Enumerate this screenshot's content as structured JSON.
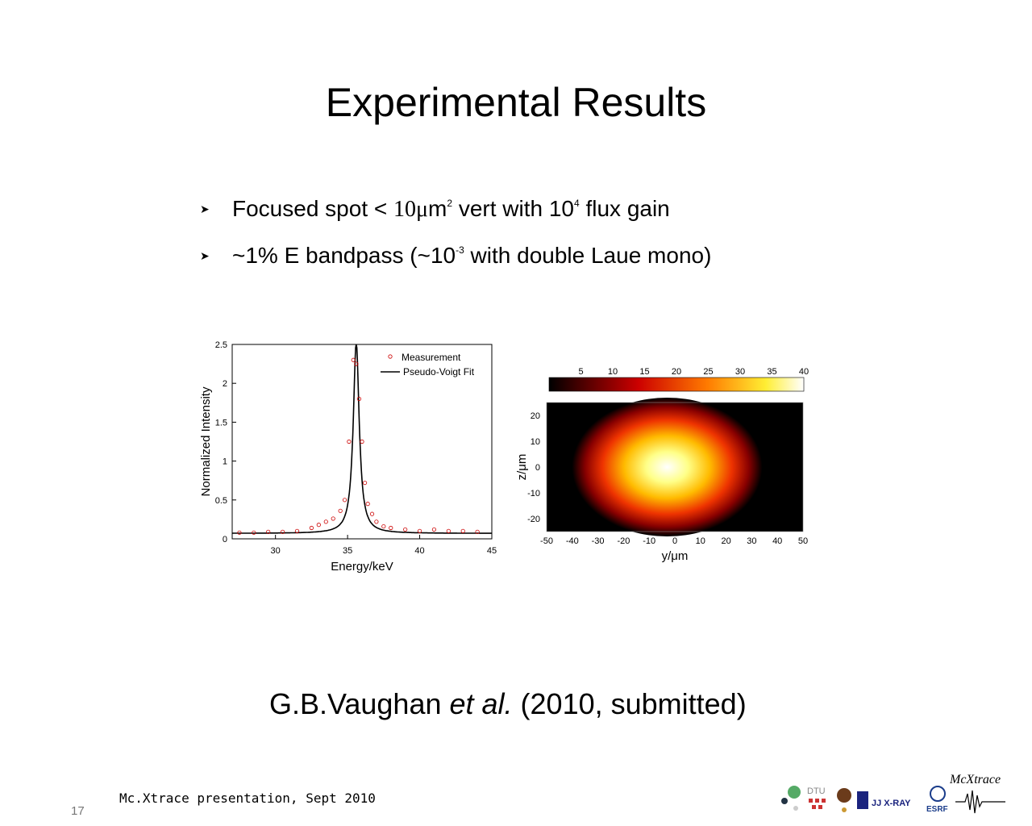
{
  "slide": {
    "title": "Experimental Results",
    "bullets": [
      {
        "pre": "Focused spot < ",
        "mu": "10μ",
        "post": "m",
        "sup1": "2",
        "mid": " vert with 10",
        "sup2": "4",
        "end": " flux gain"
      },
      {
        "pre": "~1% E bandpass (~10",
        "sup": "-3",
        "post": " with double Laue mono)"
      }
    ],
    "citation": {
      "author": "G.B.Vaughan ",
      "etal": "et al.",
      "rest": " (2010, submitted)"
    },
    "footer": "Mc.Xtrace presentation, Sept 2010",
    "page_number": "17",
    "brand": "McXtrace",
    "logos": [
      "DTU",
      "JJ X-RAY",
      "ESRF"
    ]
  },
  "chart_data": [
    {
      "type": "scatter",
      "xlabel": "Energy/keV",
      "ylabel": "Normalized Intensity",
      "xlim": [
        27,
        45
      ],
      "ylim": [
        0,
        2.5
      ],
      "xticks": [
        30,
        35,
        40,
        45
      ],
      "yticks": [
        0,
        0.5,
        1,
        1.5,
        2,
        2.5
      ],
      "legend_position": "top-right",
      "series": [
        {
          "name": "Measurement",
          "style": "open red circles",
          "x": [
            27.5,
            28.5,
            29.5,
            30.5,
            31.5,
            32.5,
            33,
            33.5,
            34,
            34.5,
            34.8,
            35.1,
            35.4,
            35.6,
            35.8,
            36,
            36.2,
            36.4,
            36.7,
            37,
            37.5,
            38,
            39,
            40,
            41,
            42,
            43,
            44
          ],
          "y": [
            0.08,
            0.08,
            0.09,
            0.09,
            0.1,
            0.14,
            0.18,
            0.22,
            0.26,
            0.36,
            0.5,
            1.25,
            2.3,
            2.25,
            1.8,
            1.25,
            0.72,
            0.45,
            0.32,
            0.22,
            0.16,
            0.14,
            0.12,
            0.1,
            0.12,
            0.1,
            0.1,
            0.09
          ]
        },
        {
          "name": "Pseudo-Voigt Fit",
          "style": "black line",
          "center": 35.6,
          "width": 0.5,
          "amplitude": 2.45,
          "baseline": 0.07
        }
      ]
    },
    {
      "type": "heatmap",
      "xlabel": "y/μm",
      "ylabel": "z/μm",
      "xticks": [
        -50,
        -40,
        -30,
        -20,
        -10,
        0,
        10,
        20,
        30,
        40,
        50
      ],
      "yticks": [
        20,
        10,
        0,
        -10,
        -20
      ],
      "xlim": [
        -50,
        50
      ],
      "ylim": [
        -25,
        25
      ],
      "colorbar_ticks": [
        5,
        10,
        15,
        20,
        25,
        30,
        35,
        40
      ],
      "colorbar_range": [
        0,
        40
      ],
      "colormap": "hot",
      "peak": {
        "y": -3,
        "z": 0,
        "value": 40
      }
    }
  ]
}
